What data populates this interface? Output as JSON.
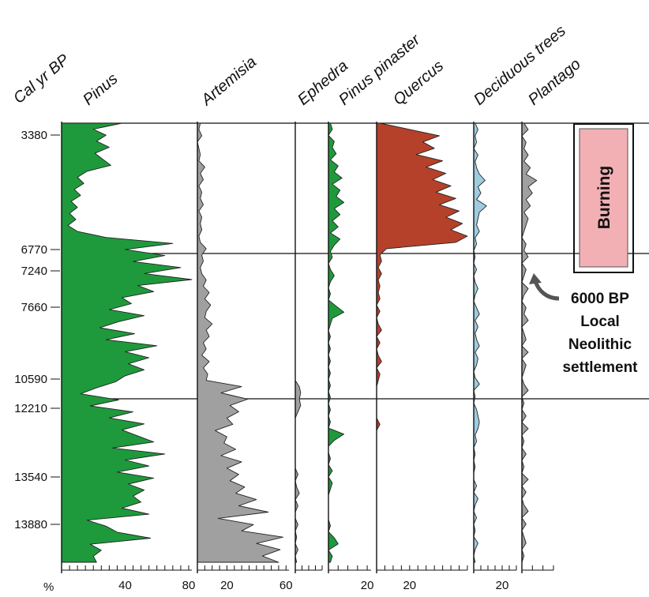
{
  "chart_data": {
    "type": "area",
    "y_axis": {
      "label": "Cal yr BP",
      "ticks": [
        "3380",
        "6770",
        "7240",
        "7660",
        "10590",
        "12210",
        "13540",
        "13880"
      ]
    },
    "x_unit_label": "%",
    "panels": [
      {
        "name": "Pinus",
        "color": "#1e9a3c",
        "xticks": [
          "40",
          "80"
        ],
        "xlim": [
          0,
          82
        ],
        "values": [
          38,
          20,
          28,
          22,
          30,
          21,
          26,
          31,
          16,
          10,
          14,
          8,
          12,
          6,
          10,
          5,
          9,
          4,
          10,
          28,
          70,
          40,
          65,
          45,
          75,
          52,
          82,
          48,
          58,
          38,
          44,
          30,
          52,
          36,
          24,
          46,
          28,
          60,
          40,
          55,
          42,
          52,
          40,
          34,
          22,
          12,
          36,
          18,
          45,
          30,
          52,
          38,
          48,
          58,
          32,
          65,
          40,
          55,
          35,
          58,
          42,
          52,
          45,
          50,
          38,
          55,
          16,
          28,
          35,
          56,
          18,
          25,
          20,
          22
        ]
      },
      {
        "name": "Artemisia",
        "color": "#a0a0a0",
        "xticks": [
          "20",
          "60"
        ],
        "xlim": [
          0,
          62
        ],
        "values": [
          2,
          1,
          3,
          0,
          1,
          2,
          1,
          5,
          2,
          4,
          1,
          3,
          2,
          4,
          1,
          3,
          2,
          3,
          1,
          2,
          6,
          3,
          4,
          2,
          3,
          6,
          4,
          8,
          5,
          9,
          6,
          5,
          10,
          6,
          8,
          4,
          6,
          3,
          8,
          4,
          7,
          6,
          30,
          16,
          34,
          22,
          28,
          20,
          24,
          12,
          20,
          18,
          26,
          16,
          30,
          20,
          28,
          22,
          32,
          26,
          40,
          28,
          48,
          14,
          38,
          30,
          58,
          40,
          56,
          44,
          55
        ]
      },
      {
        "name": "Ephedra",
        "color": "#a0a0a0",
        "xticks": [],
        "xlim": [
          0,
          20
        ],
        "values": [
          0,
          0,
          0,
          0,
          0,
          0,
          0,
          0,
          0,
          0,
          0,
          0,
          0,
          0,
          0,
          0,
          0,
          0,
          0,
          0,
          0,
          0,
          0,
          0,
          0,
          0,
          0,
          0,
          0,
          0,
          0,
          0,
          0,
          0,
          0,
          0,
          0,
          0,
          0,
          0,
          0,
          0,
          3,
          4,
          3,
          4,
          2,
          0,
          0,
          0,
          0,
          0,
          0,
          0,
          0,
          0,
          2,
          0,
          1,
          3,
          0,
          2,
          0,
          0,
          2,
          0,
          1,
          0,
          2,
          0,
          1
        ]
      },
      {
        "name": "Pinus pinaster",
        "color": "#1e9a3c",
        "xticks": [
          "20"
        ],
        "xlim": [
          0,
          22
        ],
        "values": [
          1,
          2,
          0,
          3,
          2,
          4,
          1,
          5,
          3,
          7,
          2,
          6,
          4,
          8,
          3,
          6,
          2,
          5,
          1,
          6,
          3,
          1,
          2,
          0,
          1,
          3,
          1,
          0,
          1,
          0,
          4,
          8,
          2,
          1,
          0,
          1,
          0,
          1,
          0,
          1,
          0,
          1,
          0,
          1,
          0,
          1,
          0,
          1,
          0,
          1,
          0,
          8,
          3,
          0,
          0,
          1,
          0,
          2,
          0,
          2,
          1,
          0,
          0,
          0,
          0,
          0,
          1,
          0,
          3,
          5,
          0,
          2,
          1
        ]
      },
      {
        "name": "Quercus",
        "color": "#b5412a",
        "xticks": [
          "20"
        ],
        "xlim": [
          0,
          55
        ],
        "values": [
          2,
          20,
          38,
          28,
          35,
          24,
          40,
          30,
          42,
          34,
          45,
          36,
          48,
          38,
          50,
          42,
          52,
          45,
          55,
          48,
          6,
          2,
          3,
          1,
          3,
          1,
          2,
          1,
          2,
          0,
          2,
          0,
          1,
          3,
          0,
          2,
          0,
          1,
          3,
          0,
          2,
          1,
          0,
          0,
          0,
          0,
          0,
          0,
          2,
          0,
          0,
          0,
          0,
          0,
          0,
          0,
          0,
          0,
          0,
          0,
          0,
          0,
          0,
          0,
          0,
          0,
          0,
          0,
          0,
          0,
          0
        ]
      },
      {
        "name": "Deciduous trees",
        "color": "#9fcbe0",
        "xticks": [
          "20"
        ],
        "xlim": [
          0,
          30
        ],
        "values": [
          1,
          3,
          1,
          2,
          0,
          3,
          1,
          2,
          4,
          8,
          3,
          5,
          2,
          9,
          4,
          3,
          2,
          4,
          1,
          2,
          0,
          1,
          0,
          2,
          0,
          1,
          3,
          1,
          0,
          2,
          4,
          1,
          3,
          1,
          2,
          4,
          1,
          3,
          2,
          0,
          1,
          4,
          0,
          1,
          0,
          2,
          3,
          4,
          3,
          1,
          2,
          0,
          1,
          0,
          1,
          0,
          0,
          2,
          0,
          3,
          1,
          0,
          2,
          0,
          1,
          0,
          3,
          1,
          0,
          1
        ]
      },
      {
        "name": "Plantago",
        "color": "#a0a0a0",
        "xticks": [],
        "xlim": [
          0,
          15
        ],
        "values": [
          1,
          3,
          0,
          2,
          1,
          3,
          1,
          4,
          2,
          7,
          3,
          5,
          2,
          4,
          1,
          3,
          2,
          1,
          0,
          2,
          1,
          3,
          0,
          2,
          1,
          0,
          3,
          1,
          0,
          2,
          1,
          3,
          0,
          1,
          2,
          0,
          3,
          0,
          2,
          1,
          0,
          1,
          3,
          0,
          1,
          0,
          2,
          0,
          3,
          0,
          1,
          0,
          2,
          0,
          1,
          0,
          3,
          0,
          2,
          0,
          1,
          3,
          0,
          2,
          0,
          1,
          2,
          0,
          1,
          0
        ]
      }
    ],
    "annotations": {
      "burning": "Burning",
      "settlement": [
        "6000 BP",
        "Local",
        "Neolithic",
        "settlement"
      ]
    }
  }
}
